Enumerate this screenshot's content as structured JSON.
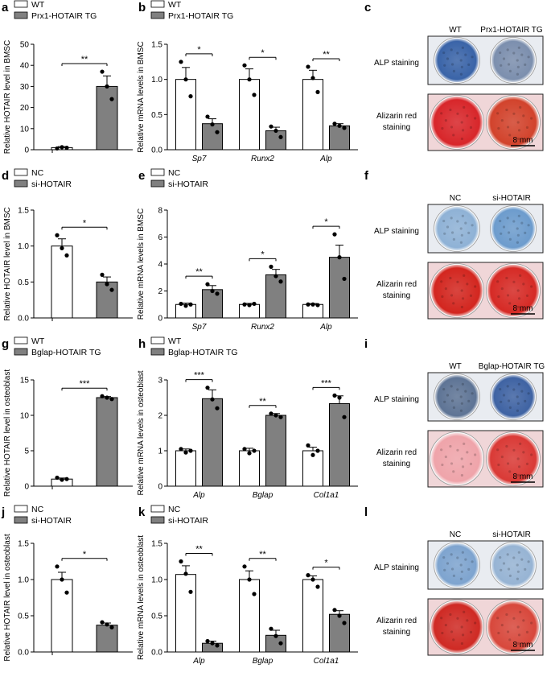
{
  "colors": {
    "control": "#ffffff",
    "treat": "#808080",
    "axis": "#000000"
  },
  "panels": [
    {
      "id": "a",
      "label": "a"
    },
    {
      "id": "b",
      "label": "b"
    },
    {
      "id": "c",
      "label": "c"
    },
    {
      "id": "d",
      "label": "d"
    },
    {
      "id": "e",
      "label": "e"
    },
    {
      "id": "f",
      "label": "f"
    },
    {
      "id": "g",
      "label": "g"
    },
    {
      "id": "h",
      "label": "h"
    },
    {
      "id": "i",
      "label": "i"
    },
    {
      "id": "j",
      "label": "j"
    },
    {
      "id": "k",
      "label": "k"
    },
    {
      "id": "l",
      "label": "l"
    }
  ],
  "staining": [
    {
      "id": "c",
      "groups": [
        "WT",
        "Prx1-HOTAIR TG"
      ],
      "alp_label": "ALP staining",
      "ar_label": [
        "Alizarin red",
        "staining"
      ],
      "scale": "8 mm",
      "alp_colors": [
        "#3a64a8",
        "#7c8fae"
      ],
      "ar_colors": [
        "#d8262a",
        "#d2432c"
      ]
    },
    {
      "id": "f",
      "groups": [
        "NC",
        "si-HOTAIR"
      ],
      "alp_label": "ALP staining",
      "ar_label": [
        "Alizarin red",
        "staining"
      ],
      "scale": "8 mm",
      "alp_colors": [
        "#8fb2d6",
        "#6d9ccd"
      ],
      "ar_colors": [
        "#d3261f",
        "#d62a25"
      ]
    },
    {
      "id": "i",
      "groups": [
        "WT",
        "Bglap-HOTAIR TG"
      ],
      "alp_label": "ALP staining",
      "ar_label": [
        "Alizarin red",
        "staining"
      ],
      "scale": "8 mm",
      "alp_colors": [
        "#5e7495",
        "#3f63a3"
      ],
      "ar_colors": [
        "#efa4aa",
        "#da3a36"
      ]
    },
    {
      "id": "l",
      "groups": [
        "NC",
        "si-HOTAIR"
      ],
      "alp_label": "ALP staining",
      "ar_label": [
        "Alizarin red",
        "staining"
      ],
      "scale": "8 mm",
      "alp_colors": [
        "#7ea4cf",
        "#97b4d4"
      ],
      "ar_colors": [
        "#cf2a24",
        "#d8483c"
      ]
    }
  ],
  "chart_data": [
    {
      "id": "a",
      "type": "bar",
      "ylabel": "Relative HOTAIR level in BMSC",
      "legend": [
        "WT",
        "Prx1-HOTAIR TG"
      ],
      "ylim": [
        0,
        50
      ],
      "yticks": [
        0,
        10,
        20,
        30,
        40,
        50
      ],
      "categories": [
        ""
      ],
      "groups": [
        {
          "values": [
            1
          ],
          "err": [
            0.5
          ],
          "points": [
            [
              0.6,
              1.2,
              0.9
            ]
          ]
        },
        {
          "values": [
            30
          ],
          "err": [
            5
          ],
          "points": [
            [
              37,
              30,
              24
            ]
          ]
        }
      ],
      "sig": [
        "**"
      ]
    },
    {
      "id": "b",
      "type": "bar",
      "ylabel": "Relative mRNA levels in BMSC",
      "legend": [
        "WT",
        "Prx1-HOTAIR TG"
      ],
      "ylim": [
        0,
        1.5
      ],
      "yticks": [
        0,
        0.5,
        1.0,
        1.5
      ],
      "categories": [
        "Sp7",
        "Runx2",
        "Alp"
      ],
      "groups": [
        {
          "values": [
            1.0,
            1.0,
            1.0
          ],
          "err": [
            0.17,
            0.15,
            0.13
          ],
          "points": [
            [
              1.25,
              1.0,
              0.76
            ],
            [
              1.2,
              1.0,
              0.78
            ],
            [
              1.18,
              1.02,
              0.82
            ]
          ]
        },
        {
          "values": [
            0.37,
            0.27,
            0.34
          ],
          "err": [
            0.07,
            0.05,
            0.03
          ],
          "points": [
            [
              0.47,
              0.36,
              0.25
            ],
            [
              0.33,
              0.27,
              0.18
            ],
            [
              0.37,
              0.34,
              0.31
            ]
          ]
        }
      ],
      "sig": [
        "*",
        "*",
        "**"
      ]
    },
    {
      "id": "d",
      "type": "bar",
      "ylabel": "Relative HOTAIR level in BMSC",
      "legend": [
        "NC",
        "si-HOTAIR"
      ],
      "ylim": [
        0,
        1.5
      ],
      "yticks": [
        0,
        0.5,
        1.0,
        1.5
      ],
      "categories": [
        ""
      ],
      "groups": [
        {
          "values": [
            1.0
          ],
          "err": [
            0.1
          ],
          "points": [
            [
              1.15,
              0.97,
              0.87
            ]
          ]
        },
        {
          "values": [
            0.5
          ],
          "err": [
            0.07
          ],
          "points": [
            [
              0.6,
              0.47,
              0.39
            ]
          ]
        }
      ],
      "sig": [
        "*"
      ]
    },
    {
      "id": "e",
      "type": "bar",
      "ylabel": "Relative mRNA levels in BMSC",
      "legend": [
        "NC",
        "si-HOTAIR"
      ],
      "ylim": [
        0,
        8
      ],
      "yticks": [
        0,
        2,
        4,
        6,
        8
      ],
      "categories": [
        "Sp7",
        "Runx2",
        "Alp"
      ],
      "groups": [
        {
          "values": [
            1.0,
            1.0,
            1.0
          ],
          "err": [
            0.1,
            0.08,
            0.07
          ],
          "points": [
            [
              1.05,
              0.9,
              1.0
            ],
            [
              1.0,
              0.95,
              1.05
            ],
            [
              1.0,
              1.0,
              0.95
            ]
          ]
        },
        {
          "values": [
            2.1,
            3.2,
            4.5
          ],
          "err": [
            0.3,
            0.4,
            0.9
          ],
          "points": [
            [
              2.5,
              2.0,
              1.8
            ],
            [
              3.8,
              3.1,
              2.7
            ],
            [
              6.2,
              4.5,
              2.9
            ]
          ]
        }
      ],
      "sig": [
        "**",
        "*",
        "*"
      ]
    },
    {
      "id": "g",
      "type": "bar",
      "ylabel": "Relative HOTAIR level in osteoblast",
      "legend": [
        "WT",
        "Bglap-HOTAIR TG"
      ],
      "ylim": [
        0,
        15
      ],
      "yticks": [
        0,
        5,
        10,
        15
      ],
      "categories": [
        ""
      ],
      "groups": [
        {
          "values": [
            1
          ],
          "err": [
            0.15
          ],
          "points": [
            [
              1.2,
              0.9,
              1.0
            ]
          ]
        },
        {
          "values": [
            12.5
          ],
          "err": [
            0.15
          ],
          "points": [
            [
              12.7,
              12.5,
              12.3
            ]
          ]
        }
      ],
      "sig": [
        "***"
      ]
    },
    {
      "id": "h",
      "type": "bar",
      "ylabel": "Relative mRNA levels in osteoblast",
      "legend": [
        "WT",
        "Bglap-HOTAIR TG"
      ],
      "ylim": [
        0,
        3
      ],
      "yticks": [
        0,
        1,
        2,
        3
      ],
      "categories": [
        "Alp",
        "Bglap",
        "Col1a1"
      ],
      "groups": [
        {
          "values": [
            1.0,
            1.0,
            1.0
          ],
          "err": [
            0.05,
            0.07,
            0.1
          ],
          "points": [
            [
              1.05,
              0.95,
              1.0
            ],
            [
              1.05,
              0.93,
              1.0
            ],
            [
              1.15,
              0.88,
              1.0
            ]
          ]
        },
        {
          "values": [
            2.47,
            2.0,
            2.33
          ],
          "err": [
            0.25,
            0.05,
            0.22
          ],
          "points": [
            [
              2.78,
              2.45,
              2.2
            ],
            [
              2.05,
              2.0,
              1.95
            ],
            [
              2.56,
              2.5,
              1.95
            ]
          ]
        }
      ],
      "sig": [
        "***",
        "**",
        "***"
      ]
    },
    {
      "id": "j",
      "type": "bar",
      "ylabel": "Relative HOTAIR level in osteoblast",
      "legend": [
        "NC",
        "si-HOTAIR"
      ],
      "ylim": [
        0,
        1.5
      ],
      "yticks": [
        0,
        0.5,
        1.0,
        1.5
      ],
      "categories": [
        ""
      ],
      "groups": [
        {
          "values": [
            1.0
          ],
          "err": [
            0.1
          ],
          "points": [
            [
              1.18,
              1.0,
              0.82
            ]
          ]
        },
        {
          "values": [
            0.37
          ],
          "err": [
            0.03
          ],
          "points": [
            [
              0.41,
              0.38,
              0.34
            ]
          ]
        }
      ],
      "sig": [
        "*"
      ]
    },
    {
      "id": "k",
      "type": "bar",
      "ylabel": "Relative mRNA levels in osteoblast",
      "legend": [
        "NC",
        "si-HOTAIR"
      ],
      "ylim": [
        0,
        1.5
      ],
      "yticks": [
        0,
        0.5,
        1.0,
        1.5
      ],
      "categories": [
        "Alp",
        "Bglap",
        "Col1a1"
      ],
      "groups": [
        {
          "values": [
            1.07,
            1.0,
            1.0
          ],
          "err": [
            0.12,
            0.12,
            0.05
          ],
          "points": [
            [
              1.25,
              1.08,
              0.83
            ],
            [
              1.18,
              1.0,
              0.8
            ],
            [
              1.06,
              1.0,
              0.9
            ]
          ]
        },
        {
          "values": [
            0.12,
            0.23,
            0.52
          ],
          "err": [
            0.03,
            0.07,
            0.05
          ],
          "points": [
            [
              0.15,
              0.12,
              0.09
            ],
            [
              0.32,
              0.22,
              0.12
            ],
            [
              0.58,
              0.5,
              0.4
            ]
          ]
        }
      ],
      "sig": [
        "**",
        "**",
        "*"
      ]
    }
  ]
}
